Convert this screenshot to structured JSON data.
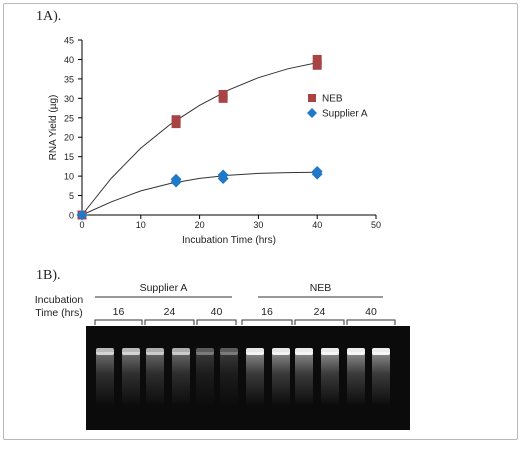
{
  "figure": {
    "panel_a_label": "1A).",
    "panel_b_label": "1B)."
  },
  "chart_data": [
    {
      "type": "scatter",
      "title": "",
      "xlabel": "Incubation Time (hrs)",
      "ylabel": "RNA Yield (µg)",
      "xlim": [
        0,
        50
      ],
      "ylim": [
        0,
        45
      ],
      "xticks": [
        0,
        10,
        20,
        30,
        40,
        50
      ],
      "yticks": [
        0,
        5,
        10,
        15,
        20,
        25,
        30,
        35,
        40,
        45
      ],
      "grid": false,
      "legend_position": "right",
      "trendline": "smooth curve",
      "series": [
        {
          "name": "NEB",
          "marker": "square",
          "color": "#a84444",
          "points": [
            {
              "x": 0,
              "y": 0
            },
            {
              "x": 16,
              "y": 23.5
            },
            {
              "x": 16,
              "y": 24.5
            },
            {
              "x": 24,
              "y": 30
            },
            {
              "x": 24,
              "y": 31
            },
            {
              "x": 40,
              "y": 38.5
            },
            {
              "x": 40,
              "y": 40
            }
          ],
          "curve": [
            [
              0,
              0
            ],
            [
              5,
              9.5
            ],
            [
              10,
              17.2
            ],
            [
              15,
              23.3
            ],
            [
              20,
              28.2
            ],
            [
              25,
              32.2
            ],
            [
              30,
              35.3
            ],
            [
              35,
              37.6
            ],
            [
              40,
              39.2
            ]
          ]
        },
        {
          "name": "Supplier A",
          "marker": "diamond",
          "color": "#1f78c8",
          "points": [
            {
              "x": 0,
              "y": 0
            },
            {
              "x": 16,
              "y": 8.5
            },
            {
              "x": 16,
              "y": 9.2
            },
            {
              "x": 24,
              "y": 9.4
            },
            {
              "x": 24,
              "y": 10.3
            },
            {
              "x": 40,
              "y": 10.5
            },
            {
              "x": 40,
              "y": 11.2
            }
          ],
          "curve": [
            [
              0,
              0
            ],
            [
              5,
              3.4
            ],
            [
              10,
              6.2
            ],
            [
              15,
              8.1
            ],
            [
              20,
              9.4
            ],
            [
              25,
              10.2
            ],
            [
              30,
              10.7
            ],
            [
              35,
              10.9
            ],
            [
              40,
              11
            ]
          ]
        }
      ]
    },
    {
      "type": "gel",
      "row_label_lines": [
        "Incubation",
        "Time (hrs)"
      ],
      "groups": [
        {
          "name": "Supplier A",
          "times": [
            "16",
            "24",
            "40"
          ],
          "lanes_per_time": 2,
          "band_intensity": [
            0.75,
            0.7,
            0.35
          ]
        },
        {
          "name": "NEB",
          "times": [
            "16",
            "24",
            "40"
          ],
          "lanes_per_time": 2,
          "band_intensity": [
            0.95,
            0.97,
            0.98
          ]
        }
      ]
    }
  ]
}
